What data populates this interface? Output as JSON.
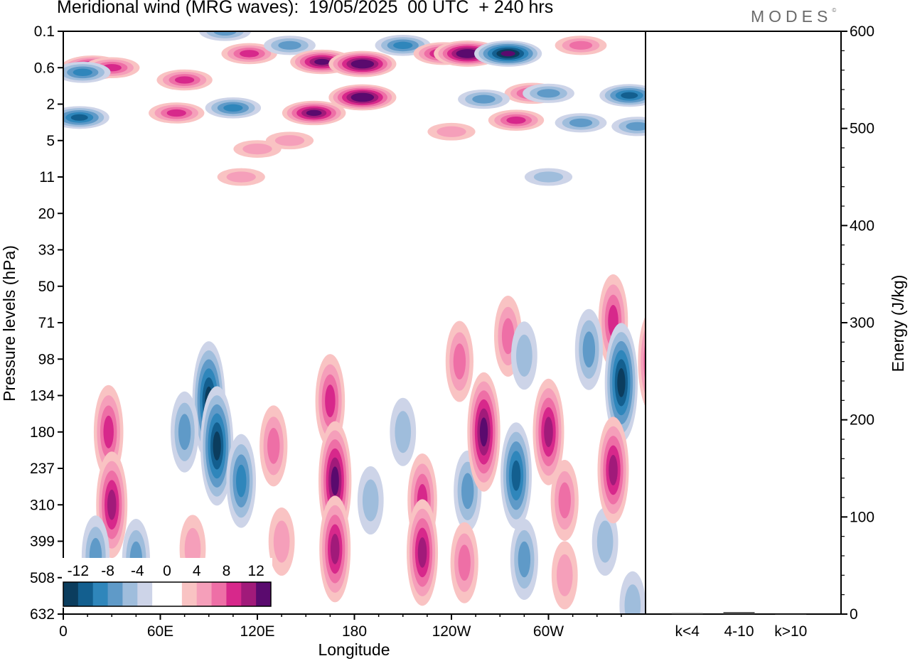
{
  "header": {
    "title": "Meridional wind (MRG waves):  19/05/2025  00 UTC  + 240 hrs",
    "logo_text": "MODES",
    "logo_mark": "©"
  },
  "chart_data": [
    {
      "type": "heatmap",
      "title": "Meridional wind (MRG waves):  19/05/2025  00 UTC  + 240 hrs",
      "xlabel": "Longitude",
      "ylabel": "Pressure levels (hPa)",
      "x_ticks": [
        "0",
        "60E",
        "120E",
        "180",
        "120W",
        "60W"
      ],
      "y_ticks": [
        "0.1",
        "0.6",
        "2",
        "5",
        "11",
        "20",
        "33",
        "50",
        "71",
        "98",
        "134",
        "180",
        "237",
        "310",
        "399",
        "508",
        "632"
      ],
      "colorbar": {
        "levels": [
          -14,
          -12,
          -10,
          -8,
          -6,
          -4,
          -2,
          0,
          2,
          4,
          6,
          8,
          10,
          12,
          14
        ],
        "labels": [
          "-12",
          "-8",
          "-4",
          "0",
          "4",
          "8",
          "12"
        ],
        "colors": [
          "#0b3d5e",
          "#135f8f",
          "#2f86bb",
          "#5f9ac8",
          "#9fbddc",
          "#cdd4e8",
          "#ffffff",
          "#ffffff",
          "#f9c3c3",
          "#f59fba",
          "#ee6fa6",
          "#d7288b",
          "#a11a7a",
          "#5a0a6e"
        ]
      },
      "blobs": [
        {
          "x": 18,
          "level": 0.6,
          "v": 12
        },
        {
          "x": 30,
          "level": 0.6,
          "v": 8
        },
        {
          "x": 75,
          "level": 0.9,
          "v": 8
        },
        {
          "x": 100,
          "level": 0.1,
          "v": -6
        },
        {
          "x": 115,
          "level": 0.3,
          "v": 8
        },
        {
          "x": 140,
          "level": 0.2,
          "v": -6
        },
        {
          "x": 160,
          "level": 0.45,
          "v": 12
        },
        {
          "x": 185,
          "level": 0.5,
          "v": 14
        },
        {
          "x": 210,
          "level": 0.2,
          "v": -8
        },
        {
          "x": 235,
          "level": 0.3,
          "v": 10
        },
        {
          "x": 250,
          "level": 0.3,
          "v": 14
        },
        {
          "x": 275,
          "level": 0.3,
          "v": -14
        },
        {
          "x": 320,
          "level": 0.2,
          "v": 6
        },
        {
          "x": 290,
          "level": 1.4,
          "v": 8
        },
        {
          "x": 10,
          "level": 2.8,
          "v": -10
        },
        {
          "x": 12,
          "level": 0.7,
          "v": -8
        },
        {
          "x": 70,
          "level": 2.5,
          "v": 8
        },
        {
          "x": 105,
          "level": 2.2,
          "v": -8
        },
        {
          "x": 155,
          "level": 2.5,
          "v": 12
        },
        {
          "x": 185,
          "level": 1.6,
          "v": 14
        },
        {
          "x": 260,
          "level": 1.7,
          "v": -6
        },
        {
          "x": 240,
          "level": 4.0,
          "v": 4
        },
        {
          "x": 280,
          "level": 3.0,
          "v": 8
        },
        {
          "x": 300,
          "level": 1.4,
          "v": -6
        },
        {
          "x": 320,
          "level": 3.2,
          "v": -6
        },
        {
          "x": 350,
          "level": 1.5,
          "v": -10
        },
        {
          "x": 355,
          "level": 3.5,
          "v": -6
        },
        {
          "x": 140,
          "level": 5.0,
          "v": 4
        },
        {
          "x": 120,
          "level": 6.0,
          "v": 4
        },
        {
          "x": 300,
          "level": 11,
          "v": -4
        },
        {
          "x": 110,
          "level": 11,
          "v": 4
        },
        {
          "x": 340,
          "level": 70,
          "v": 8
        },
        {
          "x": 325,
          "level": 90,
          "v": -6
        },
        {
          "x": 345,
          "level": 120,
          "v": -12
        },
        {
          "x": 275,
          "level": 80,
          "v": 6
        },
        {
          "x": 285,
          "level": 95,
          "v": -4
        },
        {
          "x": 365,
          "level": 100,
          "v": 10
        },
        {
          "x": 28,
          "level": 180,
          "v": 8
        },
        {
          "x": 30,
          "level": 310,
          "v": 10
        },
        {
          "x": 20,
          "level": 440,
          "v": -6
        },
        {
          "x": 45,
          "level": 450,
          "v": -6
        },
        {
          "x": 90,
          "level": 140,
          "v": -12
        },
        {
          "x": 95,
          "level": 200,
          "v": -12
        },
        {
          "x": 110,
          "level": 260,
          "v": -8
        },
        {
          "x": 75,
          "level": 180,
          "v": -6
        },
        {
          "x": 80,
          "level": 420,
          "v": 4
        },
        {
          "x": 130,
          "level": 200,
          "v": 6
        },
        {
          "x": 135,
          "level": 400,
          "v": 4
        },
        {
          "x": 165,
          "level": 140,
          "v": 8
        },
        {
          "x": 168,
          "level": 260,
          "v": 12
        },
        {
          "x": 168,
          "level": 420,
          "v": 10
        },
        {
          "x": 190,
          "level": 300,
          "v": -4
        },
        {
          "x": 210,
          "level": 180,
          "v": -4
        },
        {
          "x": 222,
          "level": 300,
          "v": 8
        },
        {
          "x": 222,
          "level": 430,
          "v": 10
        },
        {
          "x": 245,
          "level": 100,
          "v": 6
        },
        {
          "x": 250,
          "level": 280,
          "v": -6
        },
        {
          "x": 248,
          "level": 460,
          "v": 6
        },
        {
          "x": 260,
          "level": 180,
          "v": 12
        },
        {
          "x": 280,
          "level": 250,
          "v": -10
        },
        {
          "x": 285,
          "level": 450,
          "v": -6
        },
        {
          "x": 300,
          "level": 180,
          "v": 10
        },
        {
          "x": 310,
          "level": 300,
          "v": 6
        },
        {
          "x": 310,
          "level": 500,
          "v": 4
        },
        {
          "x": 335,
          "level": 400,
          "v": -4
        },
        {
          "x": 340,
          "level": 240,
          "v": 10
        },
        {
          "x": 352,
          "level": 600,
          "v": -4
        }
      ]
    },
    {
      "type": "bar",
      "ylabel": "Energy (J/kg)",
      "categories": [
        "k<4",
        "4-10",
        "k>10"
      ],
      "values": [
        1,
        2,
        0
      ],
      "ylim": [
        0,
        600
      ],
      "y_ticks": [
        "0",
        "100",
        "200",
        "300",
        "400",
        "500",
        "600"
      ]
    }
  ]
}
